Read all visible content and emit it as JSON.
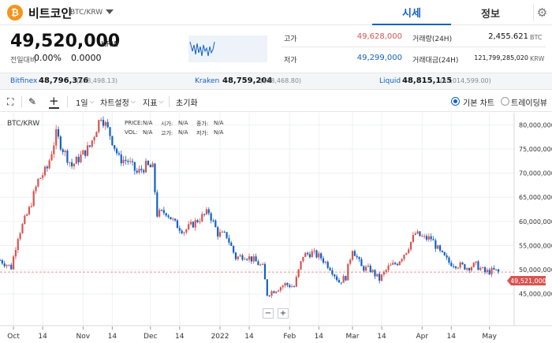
{
  "coin": {
    "logo_glyph": "₿",
    "name": "비트코인",
    "pair": "BTC/KRW"
  },
  "tabs": {
    "sise": "시세",
    "info": "정보"
  },
  "price": {
    "current": "49,520,000",
    "unit": "KRW",
    "change_label": "전일대비",
    "change_rate": "0.00%",
    "change_amount": "0.0000"
  },
  "stats": {
    "high_label": "고가",
    "high": "49,628,000",
    "low_label": "저가",
    "low": "49,299,000",
    "volume_label": "거래량(24H)",
    "volume": "2,455.621",
    "volume_unit": "BTC",
    "amount_label": "거래대금(24H)",
    "amount": "121,799,285,020",
    "amount_unit": "KRW"
  },
  "exchanges": [
    {
      "name": "Bitfinex",
      "price": "48,796,376",
      "usd": "($38,498.13)"
    },
    {
      "name": "Kraken",
      "price": "48,759,204",
      "usd": "($38,468.80)"
    },
    {
      "name": "Liquid",
      "price": "48,815,115",
      "usd": "(¥5,014,599.00)"
    }
  ],
  "toolbar": {
    "interval": "1일",
    "chart_settings": "차트설정",
    "indicators": "지표",
    "reset": "초기화",
    "basic_chart": "기본 차트",
    "tradingview": "트레이딩뷰"
  },
  "legend": {
    "price_label": "PRICE:",
    "price_val": "N/A",
    "open_label": "시가:",
    "open_val": "N/A",
    "close_label": "종가:",
    "close_val": "N/A",
    "vol_label": "VOL:",
    "vol_val": "N/A",
    "high_label": "고가:",
    "high_val": "N/A",
    "low_label": "저가:",
    "low_val": "N/A"
  },
  "colors": {
    "up": "#d9534f",
    "down": "#1261c4",
    "accent": "#1261c4"
  },
  "chart_data": {
    "type": "candlestick",
    "title": "BTC/KRW",
    "x_tick_labels": [
      "Oct",
      "14",
      "Nov",
      "14",
      "Dec",
      "14",
      "2022",
      "14",
      "Feb",
      "14",
      "Mar",
      "14",
      "Apr",
      "14",
      "May"
    ],
    "y_tick_labels": [
      "45,000,000",
      "50,000,000",
      "55,000,000",
      "60,000,000",
      "65,000,000",
      "70,000,000",
      "75,000,000",
      "80,000,000"
    ],
    "ylim": [
      43000000,
      82500000
    ],
    "current_price": 49521000,
    "current_price_label": "49,521,000",
    "grid": true,
    "zoom_minus": "−",
    "zoom_plus": "+",
    "close_path": [
      [
        "2021-09-25",
        52000000
      ],
      [
        "2021-09-30",
        50500000
      ],
      [
        "2021-10-03",
        57000000
      ],
      [
        "2021-10-08",
        62500000
      ],
      [
        "2021-10-12",
        68500000
      ],
      [
        "2021-10-16",
        71000000
      ],
      [
        "2021-10-20",
        78000000
      ],
      [
        "2021-10-23",
        75000000
      ],
      [
        "2021-10-27",
        71500000
      ],
      [
        "2021-10-31",
        73500000
      ],
      [
        "2021-11-04",
        75500000
      ],
      [
        "2021-11-09",
        82000000
      ],
      [
        "2021-11-13",
        78000000
      ],
      [
        "2021-11-17",
        73000000
      ],
      [
        "2021-11-21",
        72500000
      ],
      [
        "2021-11-25",
        70000000
      ],
      [
        "2021-11-29",
        71500000
      ],
      [
        "2021-12-02",
        71000000
      ],
      [
        "2021-12-04",
        61500000
      ],
      [
        "2021-12-08",
        62000000
      ],
      [
        "2021-12-12",
        59500000
      ],
      [
        "2021-12-16",
        58000000
      ],
      [
        "2021-12-20",
        59500000
      ],
      [
        "2021-12-24",
        61000000
      ],
      [
        "2021-12-27",
        62000000
      ],
      [
        "2021-12-31",
        57500000
      ],
      [
        "2022-01-04",
        57000000
      ],
      [
        "2022-01-08",
        52500000
      ],
      [
        "2022-01-12",
        53000000
      ],
      [
        "2022-01-16",
        52000000
      ],
      [
        "2022-01-20",
        50500000
      ],
      [
        "2022-01-22",
        45000000
      ],
      [
        "2022-01-26",
        46000000
      ],
      [
        "2022-01-30",
        47000000
      ],
      [
        "2022-02-03",
        46500000
      ],
      [
        "2022-02-07",
        53000000
      ],
      [
        "2022-02-11",
        53500000
      ],
      [
        "2022-02-15",
        52500000
      ],
      [
        "2022-02-19",
        50500000
      ],
      [
        "2022-02-23",
        47500000
      ],
      [
        "2022-02-26",
        48500000
      ],
      [
        "2022-03-01",
        54500000
      ],
      [
        "2022-03-05",
        50500000
      ],
      [
        "2022-03-09",
        50000000
      ],
      [
        "2022-03-13",
        48000000
      ],
      [
        "2022-03-17",
        50500000
      ],
      [
        "2022-03-21",
        51500000
      ],
      [
        "2022-03-25",
        54000000
      ],
      [
        "2022-03-29",
        57500000
      ],
      [
        "2022-04-02",
        56500000
      ],
      [
        "2022-04-05",
        56500000
      ],
      [
        "2022-04-09",
        53500000
      ],
      [
        "2022-04-13",
        51500000
      ],
      [
        "2022-04-17",
        51000000
      ],
      [
        "2022-04-21",
        50500000
      ],
      [
        "2022-04-25",
        51000000
      ],
      [
        "2022-04-29",
        49500000
      ],
      [
        "2022-05-03",
        49800000
      ],
      [
        "2022-05-05",
        49521000
      ]
    ]
  }
}
